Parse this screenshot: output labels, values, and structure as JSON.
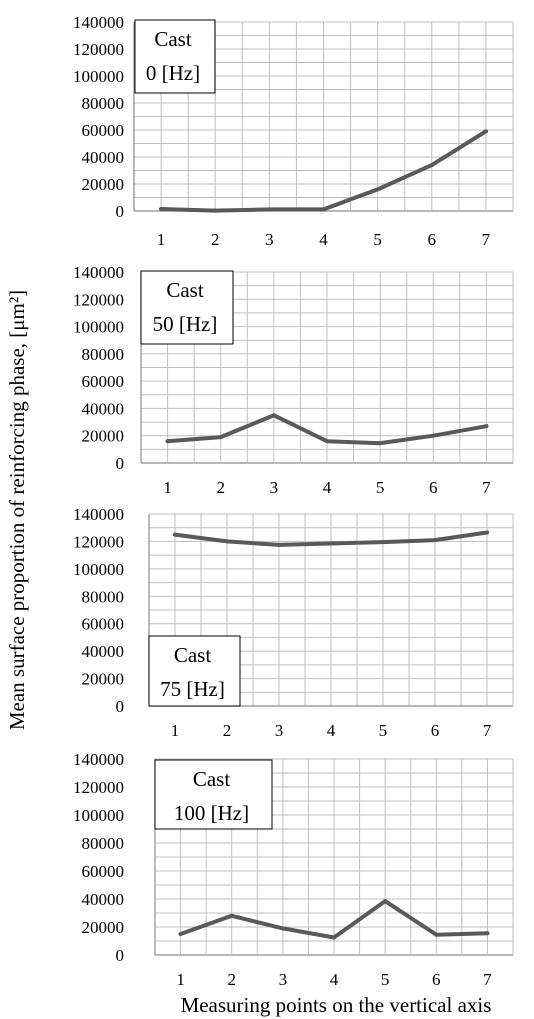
{
  "figure": {
    "ylabel": "Mean surface proportion of reinforcing phase, [μm²]",
    "xlabel": "Measuring points on the vertical axis"
  },
  "style": {
    "line_color": "#595959",
    "grid_color": "#bfbfbf",
    "axis_color": "#8c8c8c",
    "label_box_border": "#000000"
  },
  "chart_data": [
    {
      "type": "line",
      "panel_label": [
        "Cast",
        "0 [Hz]"
      ],
      "label_position": "top-left",
      "categories": [
        "1",
        "2",
        "3",
        "4",
        "5",
        "6",
        "7"
      ],
      "yticks": [
        "140000",
        "120000",
        "100000",
        "80000",
        "60000",
        "40000",
        "20000",
        "0"
      ],
      "ylim": [
        0,
        140000
      ],
      "grid": true,
      "values": [
        1500,
        300,
        1200,
        1200,
        16000,
        34000,
        59000
      ]
    },
    {
      "type": "line",
      "panel_label": [
        "Cast",
        "50 [Hz]"
      ],
      "label_position": "top-left",
      "categories": [
        "1",
        "2",
        "3",
        "4",
        "5",
        "6",
        "7"
      ],
      "yticks": [
        "140000",
        "120000",
        "100000",
        "80000",
        "60000",
        "40000",
        "20000",
        "0"
      ],
      "ylim": [
        0,
        140000
      ],
      "grid": true,
      "values": [
        16000,
        19000,
        35000,
        16000,
        14500,
        20000,
        27000
      ]
    },
    {
      "type": "line",
      "panel_label": [
        "Cast",
        "75 [Hz]"
      ],
      "label_position": "bottom-left",
      "categories": [
        "1",
        "2",
        "3",
        "4",
        "5",
        "6",
        "7"
      ],
      "yticks": [
        "140000",
        "120000",
        "100000",
        "80000",
        "60000",
        "40000",
        "20000",
        "0"
      ],
      "ylim": [
        0,
        140000
      ],
      "grid": true,
      "values": [
        125000,
        120000,
        117500,
        118500,
        119500,
        121000,
        126500
      ]
    },
    {
      "type": "line",
      "panel_label": [
        "Cast",
        "100 [Hz]"
      ],
      "label_position": "top-left",
      "categories": [
        "1",
        "2",
        "3",
        "4",
        "5",
        "6",
        "7"
      ],
      "yticks": [
        "140000",
        "120000",
        "100000",
        "80000",
        "60000",
        "40000",
        "20000",
        "0"
      ],
      "ylim": [
        0,
        140000
      ],
      "grid": true,
      "values": [
        15000,
        28000,
        19000,
        12500,
        38500,
        14500,
        15500
      ]
    }
  ]
}
